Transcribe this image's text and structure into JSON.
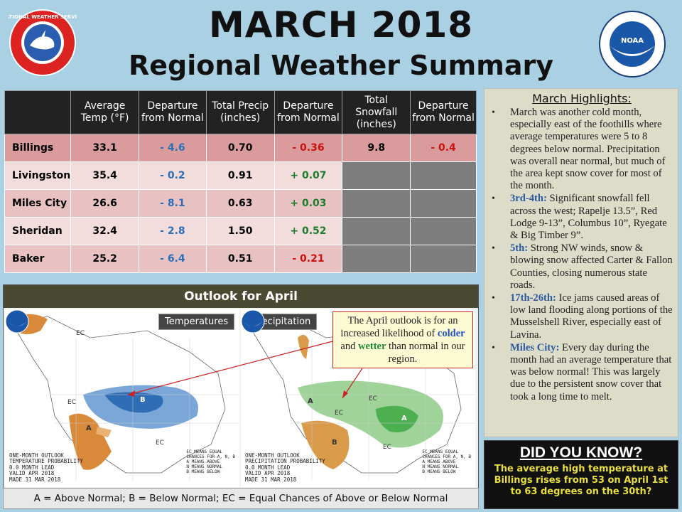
{
  "header": {
    "title": "MARCH 2018",
    "subtitle": "Regional Weather Summary",
    "nws_logo_text": "NATIONAL WEATHER SERVICE",
    "noaa_logo_text": "NOAA",
    "noaa_logo_ring": "NATIONAL OCEANIC AND ATMOSPHERIC ADMINISTRATION · U.S. DEPARTMENT OF COMMERCE"
  },
  "table": {
    "columns": [
      "",
      "Average Temp (°F)",
      "Departure from Normal",
      "Total Precip (inches)",
      "Departure from Normal",
      "Total Snowfall (inches)",
      "Departure from Normal"
    ],
    "rows": [
      {
        "city": "Billings",
        "temp": "33.1",
        "temp_dep": "- 4.6",
        "precip": "0.70",
        "precip_dep": "- 0.36",
        "snow": "9.8",
        "snow_dep": "- 0.4"
      },
      {
        "city": "Livingston",
        "temp": "35.4",
        "temp_dep": "- 0.2",
        "precip": "0.91",
        "precip_dep": "+ 0.07",
        "snow": "",
        "snow_dep": ""
      },
      {
        "city": "Miles City",
        "temp": "26.6",
        "temp_dep": "- 8.1",
        "precip": "0.63",
        "precip_dep": "+ 0.03",
        "snow": "",
        "snow_dep": ""
      },
      {
        "city": "Sheridan",
        "temp": "32.4",
        "temp_dep": "- 2.8",
        "precip": "1.50",
        "precip_dep": "+ 0.52",
        "snow": "",
        "snow_dep": ""
      },
      {
        "city": "Baker",
        "temp": "25.2",
        "temp_dep": "- 6.4",
        "precip": "0.51",
        "precip_dep": "- 0.21",
        "snow": "",
        "snow_dep": ""
      }
    ]
  },
  "highlights": {
    "title": "March Highlights:",
    "items": [
      {
        "label": "",
        "text": "March was another cold month, especially east of the foothills where average temperatures were 5 to 8 degrees below normal. Precipitation was overall near normal, but much of the area kept snow cover for most of the month."
      },
      {
        "label": "3rd-4th:",
        "text": "Significant snowfall fell across the west; Rapelje 13.5”, Red Lodge 9-13”, Columbus 10”, Ryegate & Big Timber 9”."
      },
      {
        "label": "5th:",
        "text": "Strong NW winds, snow & blowing snow affected Carter & Fallon Counties, closing numerous state roads."
      },
      {
        "label": "17th-26th:",
        "text": "Ice jams caused areas of low land flooding along portions of the Musselshell River, especially east of Lavina."
      },
      {
        "label": "Miles City:",
        "text": "Every day during the month had an average temperature that was below normal! This was largely due to the persistent snow cover that took a long time to melt."
      }
    ]
  },
  "did_you_know": {
    "title": "DID YOU KNOW?",
    "text": "The average high temperature at Billings rises from 53 on April 1st to 63 degrees on the 30th?"
  },
  "outlook": {
    "title": "Outlook for April",
    "temp_label": "Temperatures",
    "precip_label": "Precipitation",
    "temp_caption": "ONE-MONTH OUTLOOK\nTEMPERATURE PROBABILITY\n0.0 MONTH LEAD\nVALID APR 2018\nMADE 31 MAR 2018",
    "precip_caption": "ONE-MONTH OUTLOOK\nPRECIPITATION PROBABILITY\n0.0 MONTH LEAD\nVALID APR 2018\nMADE 31 MAR 2018",
    "map_note": "EC MEANS EQUAL\nCHANCES FOR A, N, B\nA MEANS ABOVE\nN MEANS NORMAL\nB MEANS BELOW",
    "callout_pre": "The April outlook is for an increased likelihood of",
    "callout_colder": "colder",
    "callout_and": "and",
    "callout_wetter": "wetter",
    "callout_post": "than normal in our region.",
    "legend": "A = Above Normal;  B = Below Normal;  EC = Equal Chances of Above or Below Normal",
    "map_letters": {
      "ec": "EC",
      "a": "A",
      "b": "B"
    },
    "colors": {
      "below_temp": "#2f6db5",
      "above_temp": "#d88a3a",
      "wet": "#4caf50",
      "dry": "#d99a4a"
    }
  }
}
